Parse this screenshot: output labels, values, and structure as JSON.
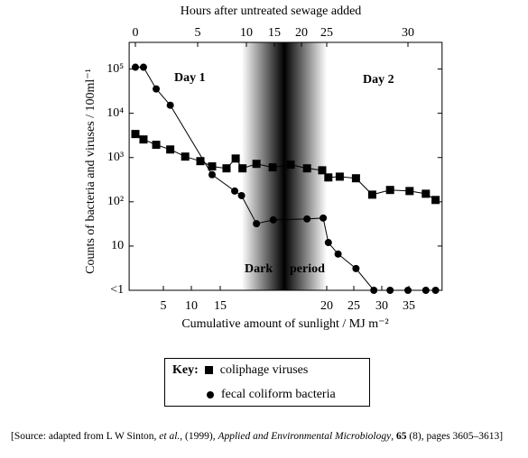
{
  "chart_data": {
    "type": "line",
    "top_axis_label": "Hours after untreated sewage added",
    "xlabel": "Cumulative amount of sunlight / MJ m⁻²",
    "ylabel": "Counts of bacteria and viruses / 100ml⁻¹",
    "annotations": [
      "Day 1",
      "Day 2",
      "Dark",
      "period"
    ],
    "legend_title": "Key:",
    "source": [
      "[Source: adapted from L W Sinton, ",
      "et al.",
      ", (1999), ",
      "Applied and Environmental Microbiology",
      ", ",
      "65",
      " (8), pages 3605–3613]"
    ],
    "xlim": [
      -0.5,
      32.1
    ],
    "xticks": [
      0,
      5,
      10,
      15,
      20,
      25,
      30
    ],
    "sunlight_ticks": [
      5,
      10,
      15,
      20,
      25,
      30,
      35
    ],
    "ylog": true,
    "ylim": [
      1,
      400000
    ],
    "yticks": [
      {
        "value": 1,
        "label": "<1"
      },
      10,
      {
        "value": 100,
        "label": "10²"
      },
      {
        "value": 1000,
        "label": "10³"
      },
      {
        "value": 10000,
        "label": "10⁴"
      },
      {
        "value": 100000,
        "label": "10⁵"
      }
    ],
    "series": [
      {
        "name": "coliphage viruses",
        "color": "#000000",
        "marker": "square",
        "x": [
          0,
          0.65,
          1.67,
          2.8,
          4.0,
          5.28,
          6.48,
          7.96,
          8.9,
          9.6,
          11.8,
          14.7,
          18.0,
          21.1,
          24.1,
          25.1,
          25.8,
          26.8,
          27.8,
          28.9,
          30.1,
          31.1,
          31.7
        ],
        "values": [
          3400,
          2560,
          1940,
          1520,
          1050,
          830,
          630,
          570,
          950,
          570,
          720,
          600,
          690,
          570,
          515,
          355,
          370,
          340,
          145,
          185,
          175,
          152,
          110
        ]
      },
      {
        "name": "fecal coliform bacteria",
        "color": "#000000",
        "marker": "circle",
        "x": [
          0,
          0.65,
          1.67,
          2.8,
          6.48,
          8.8,
          9.5,
          11.8,
          14.8,
          21.1,
          24.3,
          25.1,
          25.7,
          26.8,
          27.9,
          28.9,
          30,
          31.1,
          31.7
        ],
        "values": [
          110000,
          110000,
          35500,
          15200,
          410,
          175,
          138,
          32,
          39,
          41,
          43,
          12,
          6.6,
          3.1,
          1,
          1,
          1,
          1,
          1
        ]
      }
    ]
  }
}
